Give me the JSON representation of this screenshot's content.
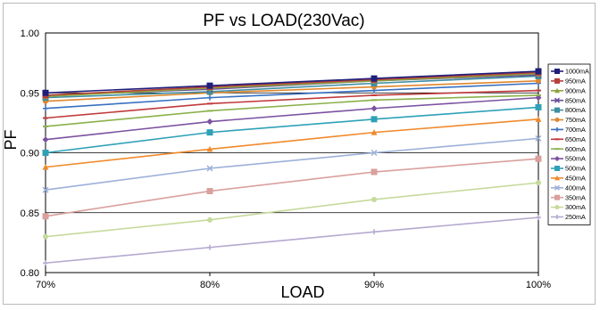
{
  "chart_data": {
    "type": "line",
    "title": "PF vs LOAD(230Vac)",
    "xlabel": "LOAD",
    "ylabel": "PF",
    "categories": [
      "70%",
      "80%",
      "90%",
      "100%"
    ],
    "ylim": [
      0.8,
      1.0
    ],
    "yticks": [
      "0.80",
      "0.85",
      "0.90",
      "0.95",
      "1.00"
    ],
    "grid": "horizontal",
    "legend_position": "right",
    "series": [
      {
        "name": "1000mA",
        "color": "#1f1f7a",
        "marker": "square",
        "values": [
          0.95,
          0.956,
          0.962,
          0.968
        ]
      },
      {
        "name": "950mA",
        "color": "#b5403b",
        "marker": "square",
        "values": [
          0.948,
          0.955,
          0.961,
          0.967
        ]
      },
      {
        "name": "900mA",
        "color": "#8ca43c",
        "marker": "triangle",
        "values": [
          0.947,
          0.954,
          0.96,
          0.966
        ]
      },
      {
        "name": "850mA",
        "color": "#6a4b9b",
        "marker": "x",
        "values": [
          0.948,
          0.953,
          0.96,
          0.965
        ]
      },
      {
        "name": "800mA",
        "color": "#3d8fa3",
        "marker": "square",
        "values": [
          0.946,
          0.951,
          0.958,
          0.964
        ]
      },
      {
        "name": "750mA",
        "color": "#e0862c",
        "marker": "circle",
        "values": [
          0.943,
          0.95,
          0.955,
          0.96
        ]
      },
      {
        "name": "700mA",
        "color": "#3870c0",
        "marker": "plus",
        "values": [
          0.937,
          0.946,
          0.952,
          0.958
        ]
      },
      {
        "name": "650mA",
        "color": "#c0393b",
        "marker": "dash",
        "values": [
          0.929,
          0.941,
          0.948,
          0.952
        ]
      },
      {
        "name": "600mA",
        "color": "#8ab14b",
        "marker": "dash",
        "values": [
          0.922,
          0.935,
          0.944,
          0.948
        ]
      },
      {
        "name": "550mA",
        "color": "#7b52a0",
        "marker": "diamond",
        "values": [
          0.911,
          0.926,
          0.937,
          0.946
        ]
      },
      {
        "name": "500mA",
        "color": "#2fa1b7",
        "marker": "square",
        "values": [
          0.9,
          0.917,
          0.928,
          0.938
        ]
      },
      {
        "name": "450mA",
        "color": "#f08a2c",
        "marker": "triangle",
        "values": [
          0.888,
          0.903,
          0.917,
          0.928
        ]
      },
      {
        "name": "400mA",
        "color": "#9cb0d8",
        "marker": "x",
        "values": [
          0.869,
          0.887,
          0.9,
          0.912
        ]
      },
      {
        "name": "350mA",
        "color": "#d9a09e",
        "marker": "square",
        "values": [
          0.847,
          0.868,
          0.884,
          0.895
        ]
      },
      {
        "name": "300mA",
        "color": "#c5da9c",
        "marker": "circle",
        "values": [
          0.83,
          0.844,
          0.861,
          0.875
        ]
      },
      {
        "name": "250mA",
        "color": "#b4a9cf",
        "marker": "plus",
        "values": [
          0.808,
          0.821,
          0.834,
          0.846
        ]
      }
    ]
  }
}
